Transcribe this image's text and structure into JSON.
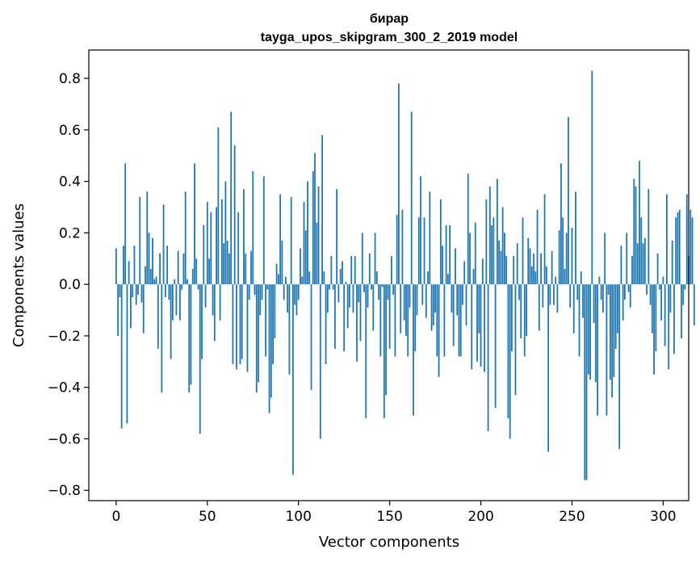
{
  "chart_data": {
    "type": "bar",
    "title_line1": "бирар",
    "title_line2": "tayga_upos_skipgram_300_2_2019 model",
    "xlabel": "Vector components",
    "ylabel": "Components values",
    "xlim": [
      -15,
      314
    ],
    "ylim": [
      -0.84,
      0.91
    ],
    "xticks": [
      0,
      50,
      100,
      150,
      200,
      250,
      300
    ],
    "yticks": [
      -0.8,
      -0.6,
      -0.4,
      -0.2,
      0.0,
      0.2,
      0.4,
      0.6,
      0.8
    ],
    "ytick_labels": [
      "−0.8",
      "−0.6",
      "−0.4",
      "−0.2",
      "0.0",
      "0.2",
      "0.4",
      "0.6",
      "0.8"
    ],
    "grid": false,
    "bar_color": "#1f77b4",
    "values": [
      0.14,
      -0.2,
      -0.05,
      -0.56,
      0.15,
      0.47,
      -0.54,
      0.09,
      -0.17,
      -0.05,
      0.15,
      -0.08,
      -0.04,
      0.34,
      -0.07,
      -0.19,
      0.07,
      0.36,
      0.2,
      0.06,
      0.18,
      0.02,
      0.03,
      -0.25,
      0.12,
      -0.42,
      0.31,
      -0.05,
      0.15,
      -0.06,
      -0.29,
      -0.14,
      0.02,
      -0.12,
      0.13,
      -0.14,
      -0.02,
      0.12,
      0.36,
      0.02,
      -0.42,
      -0.39,
      0.06,
      0.47,
      0.1,
      -0.02,
      -0.58,
      -0.29,
      0.23,
      -0.09,
      0.32,
      0.1,
      0.28,
      -0.12,
      -0.22,
      0.3,
      0.61,
      -0.14,
      0.33,
      0.16,
      0.4,
      0.17,
      0.12,
      0.67,
      -0.31,
      0.54,
      -0.33,
      0.28,
      -0.31,
      -0.29,
      0.37,
      0.12,
      -0.34,
      -0.06,
      0.13,
      0.44,
      -0.04,
      -0.42,
      -0.38,
      -0.12,
      -0.06,
      0.42,
      -0.28,
      -0.02,
      -0.5,
      -0.44,
      -0.31,
      -0.21,
      0.08,
      0.04,
      0.35,
      0.17,
      -0.06,
      0.03,
      -0.11,
      -0.35,
      0.34,
      -0.74,
      -0.08,
      -0.12,
      -0.06,
      0.14,
      0.03,
      0.32,
      0.21,
      0.4,
      0.05,
      -0.41,
      0.44,
      0.51,
      0.24,
      0.38,
      -0.6,
      0.58,
      0.05,
      -0.31,
      -0.11,
      -0.02,
      0.11,
      -0.02,
      -0.25,
      0.37,
      -0.07,
      0.06,
      0.09,
      -0.26,
      0.01,
      -0.17,
      -0.09,
      0.11,
      -0.11,
      0.11,
      -0.3,
      -0.07,
      -0.22,
      0.2,
      -0.03,
      -0.52,
      -0.09,
      0.12,
      -0.02,
      -0.18,
      0.2,
      0.05,
      -0.06,
      -0.28,
      -0.01,
      -0.52,
      -0.43,
      -0.06,
      -0.25,
      0.11,
      -0.04,
      -0.28,
      0.27,
      0.78,
      -0.19,
      0.29,
      -0.14,
      -0.2,
      -0.28,
      -0.09,
      0.67,
      -0.51,
      -0.26,
      -0.12,
      0.26,
      0.42,
      -0.08,
      0.26,
      -0.13,
      0.05,
      0.36,
      -0.18,
      -0.16,
      -0.11,
      -0.28,
      -0.36,
      0.33,
      0.15,
      -0.28,
      0.23,
      0.04,
      0.23,
      -0.11,
      -0.24,
      0.14,
      -0.12,
      -0.28,
      -0.28,
      -0.08,
      0.09,
      -0.16,
      0.43,
      0.2,
      -0.33,
      0.06,
      0.24,
      -0.3,
      -0.19,
      -0.32,
      0.1,
      -0.34,
      0.33,
      -0.57,
      0.38,
      0.23,
      0.26,
      -0.48,
      0.41,
      0.17,
      0.13,
      0.3,
      0.2,
      0.11,
      -0.52,
      -0.6,
      -0.26,
      0.11,
      -0.43,
      0.16,
      -0.06,
      -0.21,
      0.26,
      -0.28,
      -0.2,
      0.18,
      0.14,
      0.07,
      0.12,
      0.05,
      0.29,
      -0.18,
      0.12,
      -0.09,
      0.35,
      0.07,
      -0.65,
      -0.08,
      0.13,
      -0.08,
      0.03,
      -0.11,
      0.21,
      0.47,
      0.26,
      0.06,
      0.2,
      0.65,
      -0.09,
      0.22,
      -0.19,
      0.36,
      -0.06,
      -0.28,
      0.05,
      -0.13,
      -0.76,
      -0.76,
      -0.35,
      -0.37,
      0.83,
      -0.15,
      -0.38,
      -0.51,
      0.03,
      -0.06,
      -0.11,
      0.2,
      -0.51,
      -0.04,
      -0.37,
      -0.44,
      -0.36,
      -0.25,
      -0.19,
      -0.64,
      0.15,
      -0.14,
      -0.06,
      0.2,
      -0.03,
      -0.09,
      0.11,
      0.41,
      0.38,
      0.16,
      0.48,
      0.26,
      0.16,
      0.18,
      -0.04,
      0.37,
      -0.08,
      -0.19,
      -0.35,
      -0.26,
      0.12,
      -0.02,
      -0.14,
      0.03,
      -0.24,
      0.35,
      -0.33,
      -0.11,
      0.17,
      -0.27,
      0.26,
      0.28,
      0.29,
      -0.21,
      -0.08,
      -0.02,
      0.35,
      0.11,
      0.29,
      0.26,
      -0.16
    ]
  }
}
